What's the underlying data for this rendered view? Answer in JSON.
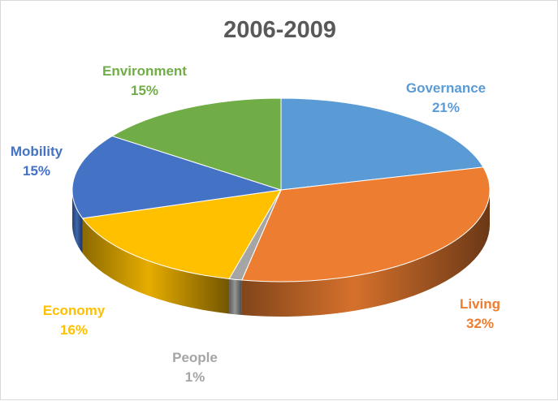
{
  "chart_data": {
    "type": "pie",
    "title": "2006-2009",
    "slices": [
      {
        "name": "Governance",
        "value": 21,
        "label": "21%",
        "color": "#5B9BD5"
      },
      {
        "name": "Living",
        "value": 32,
        "label": "32%",
        "color": "#ED7D31"
      },
      {
        "name": "People",
        "value": 1,
        "label": "1%",
        "color": "#A5A5A5"
      },
      {
        "name": "Economy",
        "value": 16,
        "label": "16%",
        "color": "#FFC000"
      },
      {
        "name": "Mobility",
        "value": 15,
        "label": "15%",
        "color": "#4472C4"
      },
      {
        "name": "Environment",
        "value": 15,
        "label": "15%",
        "color": "#70AD47"
      }
    ],
    "style": "3d-pie",
    "legend": "none"
  }
}
